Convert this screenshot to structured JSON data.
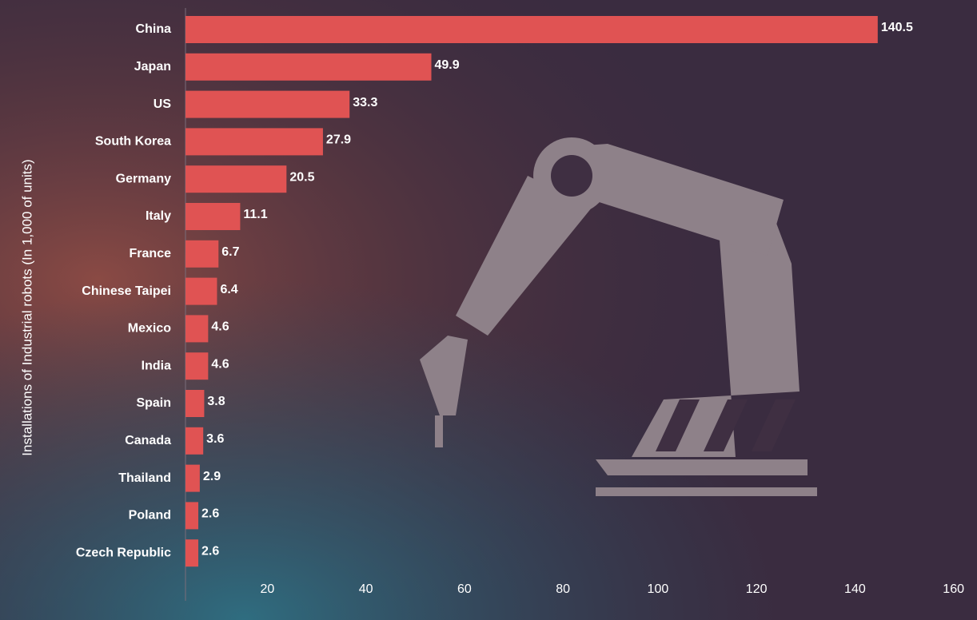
{
  "chart_data": {
    "type": "hbar",
    "y_label": "Installations of Industrial robots (In 1,000 of units)",
    "categories": [
      "China",
      "Japan",
      "US",
      "South Korea",
      "Germany",
      "Italy",
      "France",
      "Chinese Taipei",
      "Mexico",
      "India",
      "Spain",
      "Canada",
      "Thailand",
      "Poland",
      "Czech Republic"
    ],
    "values": [
      140.5,
      49.9,
      33.3,
      27.9,
      20.5,
      11.1,
      6.7,
      6.4,
      4.6,
      4.6,
      3.8,
      3.6,
      2.9,
      2.6,
      2.6
    ],
    "color": "#e05353",
    "xlim": [
      0,
      160
    ],
    "xticks": [
      20,
      40,
      60,
      80,
      100,
      120,
      140,
      160
    ]
  }
}
